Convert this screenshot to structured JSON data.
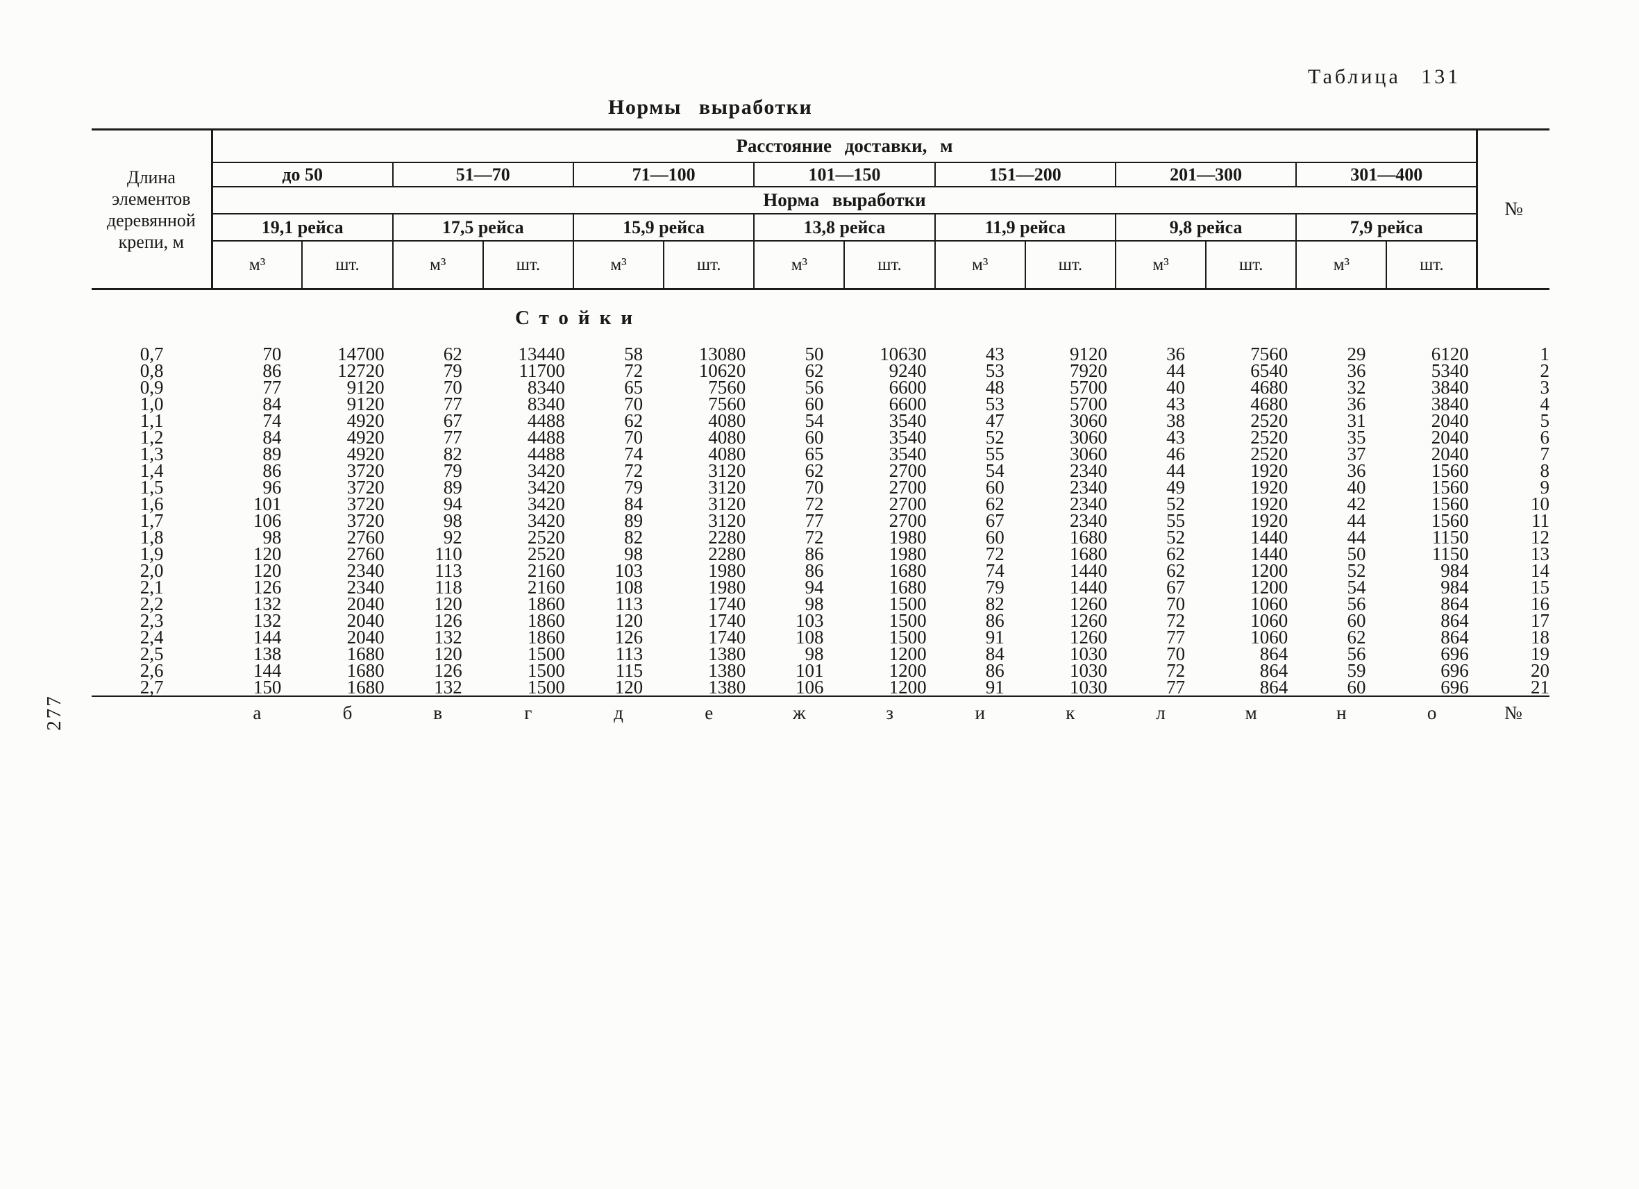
{
  "page": {
    "table_label": "Таблица 131",
    "title": "Нормы выработки",
    "page_number": "277"
  },
  "table": {
    "length_header": "Длина элементов деревянной крепи, м",
    "distance_header": "Расстояние доставки, м",
    "distances": [
      "до 50",
      "51—70",
      "71—100",
      "101—150",
      "151—200",
      "201—300",
      "301—400"
    ],
    "norm_header": "Норма выработки",
    "norms": [
      "19,1 рейса",
      "17,5 рейса",
      "15,9 рейса",
      "13,8 рейса",
      "11,9 рейса",
      "9,8 рейса",
      "7,9 рейса"
    ],
    "units": [
      "м³",
      "шт."
    ],
    "number_header": "№",
    "section_title": "Стойки",
    "rows": [
      {
        "length": "0,7",
        "values": [
          70,
          14700,
          62,
          13440,
          58,
          13080,
          50,
          10630,
          43,
          9120,
          36,
          7560,
          29,
          6120
        ],
        "num": 1
      },
      {
        "length": "0,8",
        "values": [
          86,
          12720,
          79,
          11700,
          72,
          10620,
          62,
          9240,
          53,
          7920,
          44,
          6540,
          36,
          5340
        ],
        "num": 2
      },
      {
        "length": "0,9",
        "values": [
          77,
          9120,
          70,
          8340,
          65,
          7560,
          56,
          6600,
          48,
          5700,
          40,
          4680,
          32,
          3840
        ],
        "num": 3
      },
      {
        "length": "1,0",
        "values": [
          84,
          9120,
          77,
          8340,
          70,
          7560,
          60,
          6600,
          53,
          5700,
          43,
          4680,
          36,
          3840
        ],
        "num": 4
      },
      {
        "length": "1,1",
        "values": [
          74,
          4920,
          67,
          4488,
          62,
          4080,
          54,
          3540,
          47,
          3060,
          38,
          2520,
          31,
          2040
        ],
        "num": 5
      },
      {
        "length": "1,2",
        "values": [
          84,
          4920,
          77,
          4488,
          70,
          4080,
          60,
          3540,
          52,
          3060,
          43,
          2520,
          35,
          2040
        ],
        "num": 6
      },
      {
        "length": "1,3",
        "values": [
          89,
          4920,
          82,
          4488,
          74,
          4080,
          65,
          3540,
          55,
          3060,
          46,
          2520,
          37,
          2040
        ],
        "num": 7
      },
      {
        "length": "1,4",
        "values": [
          86,
          3720,
          79,
          3420,
          72,
          3120,
          62,
          2700,
          54,
          2340,
          44,
          1920,
          36,
          1560
        ],
        "num": 8
      },
      {
        "length": "1,5",
        "values": [
          96,
          3720,
          89,
          3420,
          79,
          3120,
          70,
          2700,
          60,
          2340,
          49,
          1920,
          40,
          1560
        ],
        "num": 9
      },
      {
        "length": "1,6",
        "values": [
          101,
          3720,
          94,
          3420,
          84,
          3120,
          72,
          2700,
          62,
          2340,
          52,
          1920,
          42,
          1560
        ],
        "num": 10
      },
      {
        "length": "1,7",
        "values": [
          106,
          3720,
          98,
          3420,
          89,
          3120,
          77,
          2700,
          67,
          2340,
          55,
          1920,
          44,
          1560
        ],
        "num": 11
      },
      {
        "length": "1,8",
        "values": [
          98,
          2760,
          92,
          2520,
          82,
          2280,
          72,
          1980,
          60,
          1680,
          52,
          1440,
          44,
          1150
        ],
        "num": 12
      },
      {
        "length": "1,9",
        "values": [
          120,
          2760,
          110,
          2520,
          98,
          2280,
          86,
          1980,
          72,
          1680,
          62,
          1440,
          50,
          1150
        ],
        "num": 13
      },
      {
        "length": "2,0",
        "values": [
          120,
          2340,
          113,
          2160,
          103,
          1980,
          86,
          1680,
          74,
          1440,
          62,
          1200,
          52,
          984
        ],
        "num": 14
      },
      {
        "length": "2,1",
        "values": [
          126,
          2340,
          118,
          2160,
          108,
          1980,
          94,
          1680,
          79,
          1440,
          67,
          1200,
          54,
          984
        ],
        "num": 15
      },
      {
        "length": "2,2",
        "values": [
          132,
          2040,
          120,
          1860,
          113,
          1740,
          98,
          1500,
          82,
          1260,
          70,
          1060,
          56,
          864
        ],
        "num": 16
      },
      {
        "length": "2,3",
        "values": [
          132,
          2040,
          126,
          1860,
          120,
          1740,
          103,
          1500,
          86,
          1260,
          72,
          1060,
          60,
          864
        ],
        "num": 17
      },
      {
        "length": "2,4",
        "values": [
          144,
          2040,
          132,
          1860,
          126,
          1740,
          108,
          1500,
          91,
          1260,
          77,
          1060,
          62,
          864
        ],
        "num": 18
      },
      {
        "length": "2,5",
        "values": [
          138,
          1680,
          120,
          1500,
          113,
          1380,
          98,
          1200,
          84,
          1030,
          70,
          864,
          56,
          696
        ],
        "num": 19
      },
      {
        "length": "2,6",
        "values": [
          144,
          1680,
          126,
          1500,
          115,
          1380,
          101,
          1200,
          86,
          1030,
          72,
          864,
          59,
          696
        ],
        "num": 20
      },
      {
        "length": "2,7",
        "values": [
          150,
          1680,
          132,
          1500,
          120,
          1380,
          106,
          1200,
          91,
          1030,
          77,
          864,
          60,
          696
        ],
        "num": 21
      }
    ],
    "footer_letters": [
      "а",
      "б",
      "в",
      "г",
      "д",
      "е",
      "ж",
      "з",
      "и",
      "к",
      "л",
      "м",
      "н",
      "о"
    ],
    "footer_number": "№"
  }
}
